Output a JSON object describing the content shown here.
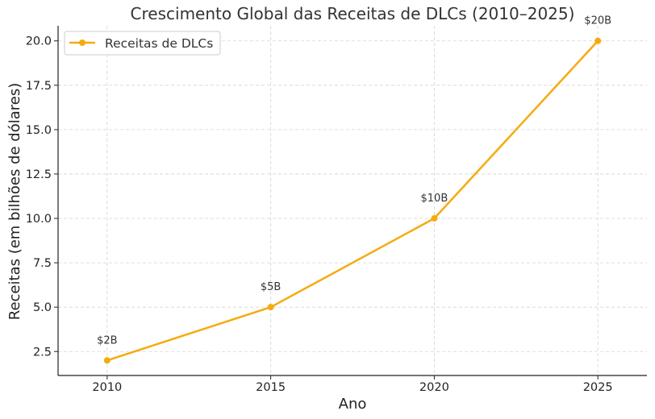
{
  "chart_data": {
    "type": "line",
    "title": "Crescimento Global das Receitas de DLCs (2010–2025)",
    "xlabel": "Ano",
    "ylabel": "Receitas (em bilhões de dólares)",
    "x": [
      2010,
      2015,
      2020,
      2025
    ],
    "x_tick_labels": [
      "2010",
      "2015",
      "2020",
      "2025"
    ],
    "xlim": [
      2008.5,
      2026.5
    ],
    "ylim": [
      1.15,
      20.85
    ],
    "y_ticks": [
      2.5,
      5.0,
      7.5,
      10.0,
      12.5,
      15.0,
      17.5,
      20.0
    ],
    "y_tick_labels": [
      "2.5",
      "5.0",
      "7.5",
      "10.0",
      "12.5",
      "15.0",
      "17.5",
      "20.0"
    ],
    "series": [
      {
        "name": "Receitas de DLCs",
        "values": [
          2,
          5,
          10,
          20
        ],
        "data_labels": [
          "$2B",
          "$5B",
          "$10B",
          "$20B"
        ],
        "color": "#f5ab0f",
        "marker": "circle"
      }
    ],
    "grid": true,
    "legend_position": "top-left"
  }
}
